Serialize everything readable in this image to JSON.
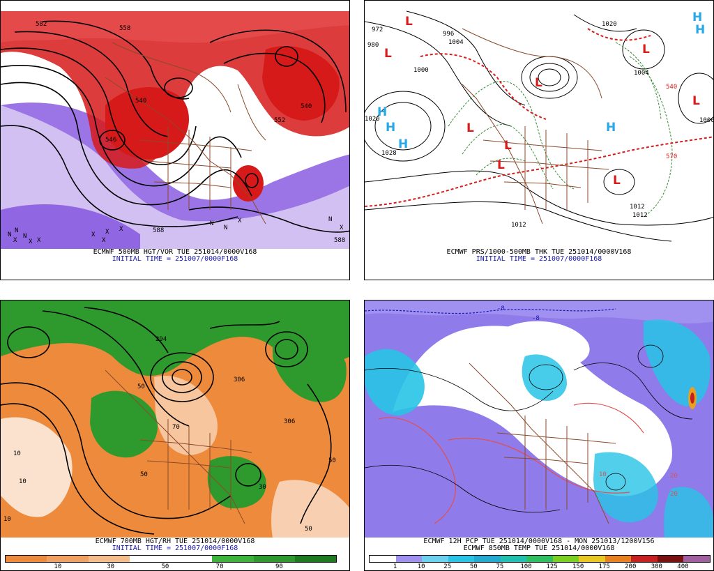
{
  "panels": [
    {
      "id": "vort",
      "caption": "ECMWF 500MB HGT/VOR TUE 251014/0000V168",
      "init": "INITIAL TIME = 251007/0000F168",
      "labels": [
        "582",
        "558",
        "540",
        "540",
        "552",
        "588",
        "546",
        "588"
      ]
    },
    {
      "id": "pres",
      "caption": "ECMWF PRS/1000-500MB THK TUE 251014/0000V168",
      "init": "INITIAL TIME = 251007/0000F168",
      "labels": [
        "972",
        "980",
        "996",
        "1004",
        "1000",
        "1020",
        "1028",
        "1004",
        "1012",
        "1012",
        "1012",
        "1020",
        "570",
        "540",
        "1000"
      ],
      "centers": [
        "L",
        "L",
        "L",
        "L",
        "L",
        "L",
        "L",
        "H",
        "H",
        "H",
        "H",
        "H",
        "L",
        "L",
        "H"
      ]
    },
    {
      "id": "rh",
      "caption": "ECMWF 700MB HGT/RH TUE 251014/0000V168",
      "init": "INITIAL TIME = 251007/0000F168",
      "labels": [
        "294",
        "50",
        "306",
        "306",
        "50",
        "10",
        "10",
        "10",
        "50",
        "70",
        "50",
        "30"
      ],
      "scale": [
        "10",
        "30",
        "50",
        "70",
        "90"
      ]
    },
    {
      "id": "pcp",
      "caption": "ECMWF 12H PCP TUE 251014/0000V168 - MON 251013/1200V156",
      "caption2": "ECMWF 850MB TEMP TUE 251014/0000V168",
      "labels": [
        "-8",
        "-8",
        "10",
        "20",
        "20"
      ],
      "scale": [
        "1",
        "10",
        "25",
        "50",
        "75",
        "100",
        "125",
        "150",
        "175",
        "200",
        "300",
        "400"
      ]
    }
  ],
  "colors": {
    "vort_red": "#d61a1a",
    "vort_purple": "#8a5ce0",
    "rh_orange": "#ee8a3c",
    "rh_green": "#2e9a2e",
    "map_brown": "#8b4a2b",
    "pcp_purple": "#8f7bea",
    "pcp_cyan": "#27c4e6",
    "h_blue": "#28a8e8",
    "l_red": "#d81c1c",
    "caption_blue": "#1a1ab4"
  }
}
